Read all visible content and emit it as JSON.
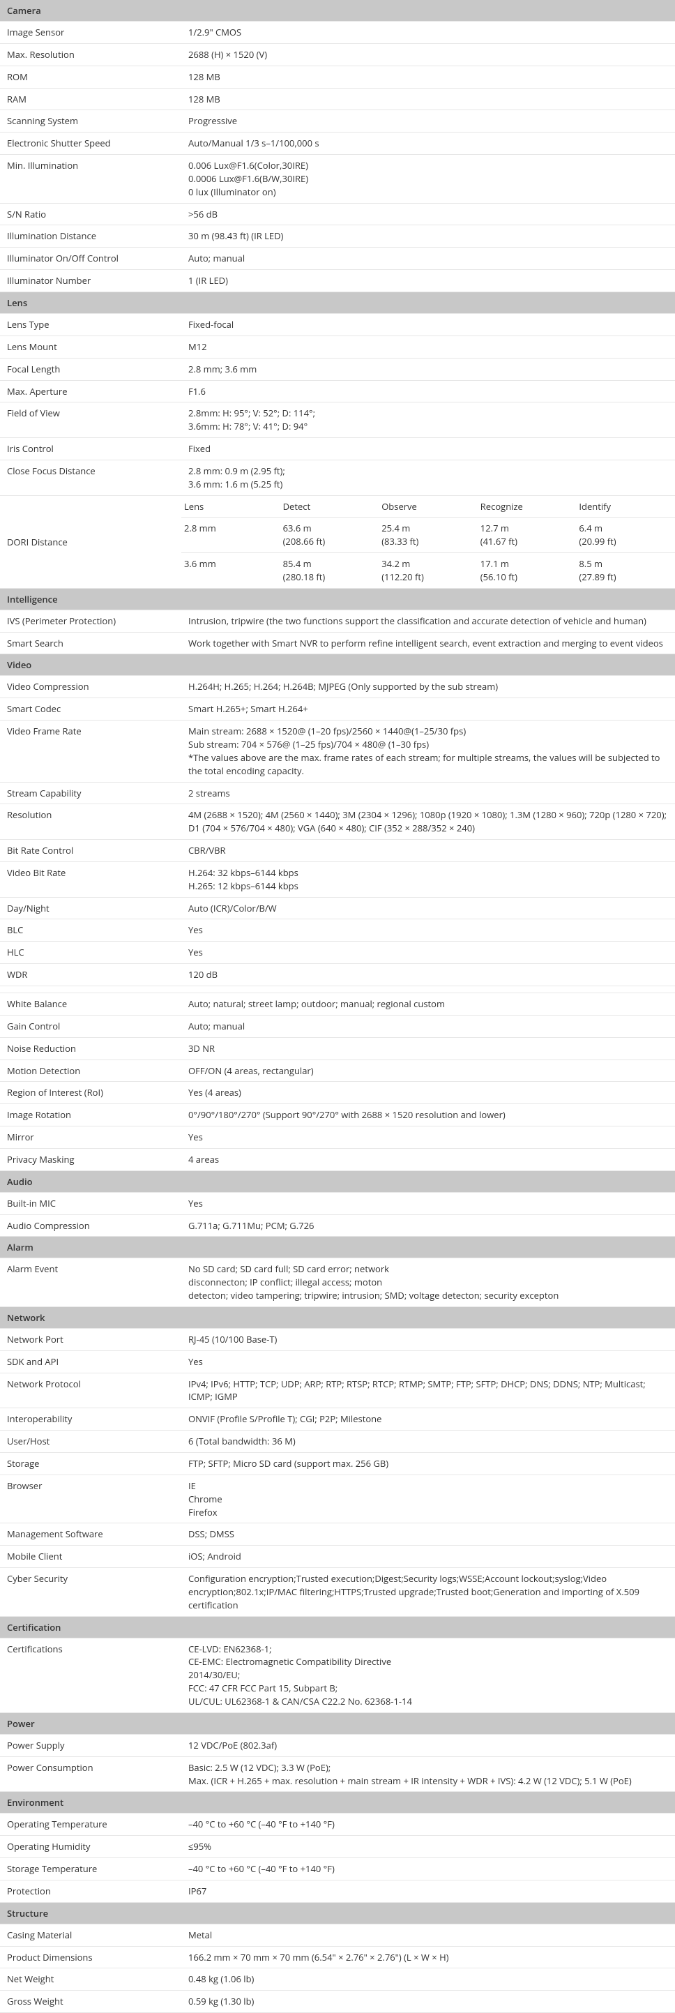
{
  "sections": [
    {
      "title": "Camera",
      "rows": [
        {
          "label": "Image Sensor",
          "value": "1/2.9\" CMOS"
        },
        {
          "label": "Max. Resolution",
          "value": "2688 (H) × 1520 (V)"
        },
        {
          "label": "ROM",
          "value": "128 MB"
        },
        {
          "label": "RAM",
          "value": "128 MB"
        },
        {
          "label": "Scanning System",
          "value": "Progressive"
        },
        {
          "label": "Electronic Shutter Speed",
          "value": "Auto/Manual 1/3 s–1/100,000 s"
        },
        {
          "label": "Min. Illumination",
          "value": "0.006 Lux@F1.6(Color,30IRE)\n0.0006 Lux@F1.6(B/W,30IRE)\n0 lux (Illuminator on)"
        },
        {
          "label": "S/N Ratio",
          "value": ">56 dB"
        },
        {
          "label": "Illumination Distance",
          "value": "30 m (98.43 ft) (IR LED)"
        },
        {
          "label": "Illuminator On/Off Control",
          "value": "Auto; manual"
        },
        {
          "label": "Illuminator Number",
          "value": "1 (IR LED)"
        }
      ]
    },
    {
      "title": "Lens",
      "rows": [
        {
          "label": "Lens Type",
          "value": "Fixed-focal"
        },
        {
          "label": "Lens Mount",
          "value": "M12"
        },
        {
          "label": "Focal Length",
          "value": "2.8 mm; 3.6 mm"
        },
        {
          "label": "Max. Aperture",
          "value": "F1.6"
        },
        {
          "label": "Field of View",
          "value": "2.8mm: H: 95°; V: 52°; D: 114°;\n3.6mm: H: 78°; V: 41°; D: 94°"
        },
        {
          "label": "Iris Control",
          "value": "Fixed"
        },
        {
          "label": "Close Focus Distance",
          "value": "2.8 mm: 0.9 m (2.95 ft);\n3.6 mm: 1.6 m (5.25 ft)"
        }
      ],
      "dori": {
        "label": "DORI Distance",
        "header": [
          "Lens",
          "Detect",
          "Observe",
          "Recognize",
          "Identify"
        ],
        "rows": [
          [
            "2.8 mm",
            "63.6 m\n(208.66 ft)",
            "25.4 m\n(83.33 ft)",
            "12.7 m\n(41.67 ft)",
            "6.4 m\n(20.99 ft)"
          ],
          [
            "3.6 mm",
            "85.4 m\n(280.18 ft)",
            "34.2 m\n(112.20 ft)",
            "17.1 m\n(56.10 ft)",
            "8.5 m\n(27.89 ft)"
          ]
        ]
      }
    },
    {
      "title": "Intelligence",
      "rows": [
        {
          "label": "IVS (Perimeter Protection)",
          "value": "Intrusion, tripwire (the two functions support the classification and accurate detection of vehicle and human)"
        },
        {
          "label": "Smart Search",
          "value": "Work together with Smart NVR to perform refine intelligent search, event extraction and merging to event videos"
        }
      ]
    },
    {
      "title": "Video",
      "rows": [
        {
          "label": "Video Compression",
          "value": "H.264H; H.265; H.264; H.264B; MJPEG (Only supported by the sub stream)"
        },
        {
          "label": "Smart Codec",
          "value": "Smart H.265+; Smart H.264+"
        },
        {
          "label": "Video Frame Rate",
          "value": "Main stream: 2688 × 1520@ (1–20 fps)/2560 × 1440@(1–25/30 fps)\nSub stream: 704 × 576@ (1–25 fps)/704 × 480@ (1–30 fps)\n*The values above are the max. frame rates of each stream; for multiple streams, the values will be subjected to the total encoding capacity."
        },
        {
          "label": "Stream Capability",
          "value": "2 streams"
        },
        {
          "label": "Resolution",
          "value": "4M (2688 × 1520); 4M (2560 × 1440); 3M (2304 × 1296); 1080p (1920 × 1080); 1.3M (1280 × 960); 720p (1280 × 720); D1 (704 × 576/704 × 480); VGA (640 × 480); CIF (352 × 288/352 × 240)"
        },
        {
          "label": "Bit Rate Control",
          "value": "CBR/VBR"
        },
        {
          "label": "Video Bit Rate",
          "value": "H.264: 32 kbps–6144 kbps\nH.265: 12 kbps–6144 kbps"
        },
        {
          "label": "Day/Night",
          "value": "Auto (ICR)/Color/B/W"
        },
        {
          "label": "BLC",
          "value": "Yes"
        },
        {
          "label": "HLC",
          "value": "Yes"
        },
        {
          "label": "WDR",
          "value": "120 dB"
        },
        {
          "gap": true
        },
        {
          "label": "White Balance",
          "value": "Auto; natural; street lamp; outdoor; manual; regional custom"
        },
        {
          "label": "Gain Control",
          "value": "Auto; manual"
        },
        {
          "label": "Noise Reduction",
          "value": "3D NR"
        },
        {
          "label": "Motion Detection",
          "value": "OFF/ON (4 areas, rectangular)"
        },
        {
          "label": "Region of Interest (RoI)",
          "value": "Yes (4 areas)"
        },
        {
          "label": "Image Rotation",
          "value": "0°/90°/180°/270° (Support 90°/270° with 2688 × 1520 resolution and lower)"
        },
        {
          "label": "Mirror",
          "value": "Yes"
        },
        {
          "label": "Privacy Masking",
          "value": "4 areas"
        }
      ]
    },
    {
      "title": "Audio",
      "rows": [
        {
          "label": "Built-in MIC",
          "value": "Yes"
        },
        {
          "label": "Audio Compression",
          "value": "G.711a; G.711Mu; PCM; G.726"
        }
      ]
    },
    {
      "title": "Alarm",
      "rows": [
        {
          "label": "Alarm Event",
          "value": "No SD card; SD card full; SD card error; network\ndisconnecton; IP conflict; illegal access; moton\ndetecton; video tampering; tripwire; intrusion; SMD; voltage detecton; security excepton"
        }
      ]
    },
    {
      "title": "Network",
      "rows": [
        {
          "label": "Network Port",
          "value": "RJ-45 (10/100 Base-T)"
        },
        {
          "label": "SDK and API",
          "value": "Yes"
        },
        {
          "label": "Network Protocol",
          "value": "IPv4; IPv6; HTTP; TCP; UDP; ARP; RTP; RTSP; RTCP; RTMP; SMTP; FTP; SFTP; DHCP; DNS; DDNS; NTP; Multicast; ICMP; IGMP"
        },
        {
          "label": "Interoperability",
          "value": "ONVIF (Profile S/Profile T); CGI; P2P; Milestone"
        },
        {
          "label": "User/Host",
          "value": "6 (Total bandwidth: 36 M)"
        },
        {
          "label": "Storage",
          "value": "FTP; SFTP; Micro SD card (support max. 256 GB)"
        },
        {
          "label": "Browser",
          "value": "IE\nChrome\nFirefox"
        },
        {
          "label": "Management Software",
          "value": "DSS; DMSS"
        },
        {
          "label": "Mobile Client",
          "value": "iOS; Android"
        },
        {
          "label": "Cyber Security",
          "value": "Configuration encryption;Trusted execution;Digest;Security logs;WSSE;Account lockout;syslog;Video encryption;802.1x;IP/MAC filtering;HTTPS;Trusted upgrade;Trusted boot;Generation and importing of X.509 certification"
        }
      ]
    },
    {
      "title": "Certification",
      "rows": [
        {
          "label": "Certifications",
          "value": "CE-LVD: EN62368-1;\nCE-EMC: Electromagnetic Compatibility Directive\n2014/30/EU;\nFCC: 47 CFR FCC Part 15, Subpart B;\nUL/CUL: UL62368-1 & CAN/CSA C22.2 No. 62368-1-14"
        }
      ]
    },
    {
      "title": "Power",
      "rows": [
        {
          "label": "Power Supply",
          "value": "12 VDC/PoE (802.3af)"
        },
        {
          "label": "Power Consumption",
          "value": "Basic: 2.5 W (12 VDC); 3.3 W (PoE);\nMax. (ICR + H.265 + max. resolution + main stream + IR intensity + WDR + IVS): 4.2 W (12 VDC); 5.1 W (PoE)"
        }
      ]
    },
    {
      "title": "Environment",
      "rows": [
        {
          "label": "Operating Temperature",
          "value": "–40 °C to +60 °C (–40 °F to +140 °F)"
        },
        {
          "label": "Operating Humidity",
          "value": "≤95%"
        },
        {
          "label": "Storage Temperature",
          "value": "–40 °C to +60 °C (–40 °F to +140 °F)"
        },
        {
          "label": "Protection",
          "value": "IP67"
        }
      ]
    },
    {
      "title": "Structure",
      "rows": [
        {
          "label": "Casing Material",
          "value": "Metal"
        },
        {
          "label": "Product Dimensions",
          "value": "166.2 mm × 70 mm × 70 mm (6.54\" × 2.76\" × 2.76\") (L × W × H)"
        },
        {
          "label": "Net Weight",
          "value": "0.48 kg (1.06 lb)"
        },
        {
          "label": "Gross Weight",
          "value": "0.59 kg (1.30 lb)"
        }
      ]
    }
  ]
}
